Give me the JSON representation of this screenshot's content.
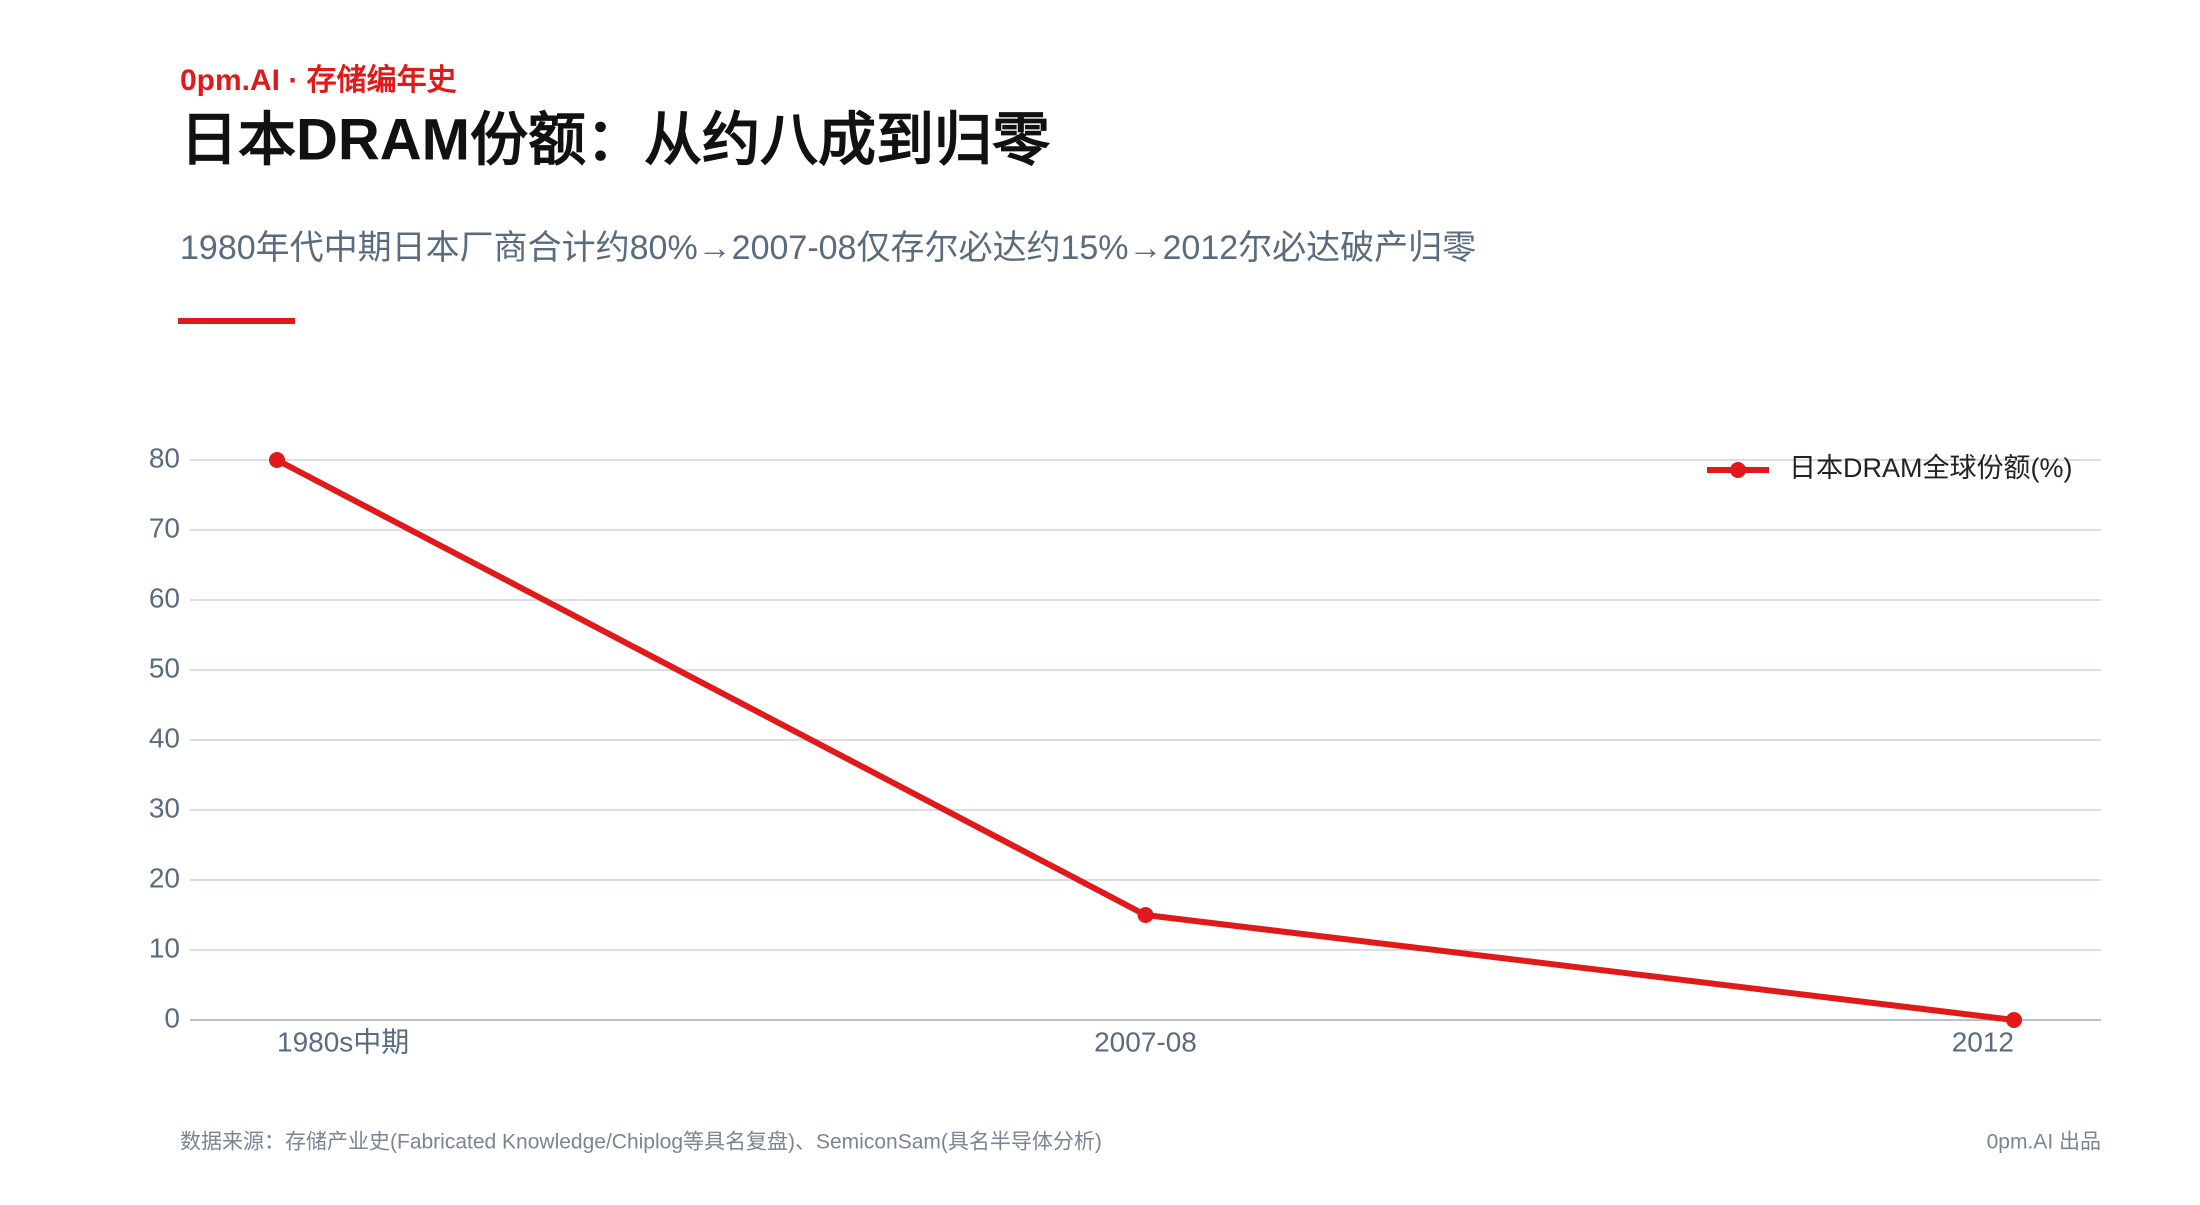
{
  "chart_data": {
    "type": "line",
    "brand": "0pm.AI · 存储编年史",
    "title": "日本DRAM份额：从约八成到归零",
    "subtitle": "1980年代中期日本厂商合计约80%→2007-08仅存尔必达约15%→2012尔必达破产归零",
    "categories": [
      "1980s中期",
      "2007-08",
      "2012"
    ],
    "series": [
      {
        "name": "日本DRAM全球份额(%)",
        "color": "#e01a1a",
        "values": [
          80,
          15,
          0
        ]
      }
    ],
    "ylim": [
      0,
      80
    ],
    "yticks": [
      0,
      10,
      20,
      30,
      40,
      50,
      60,
      70,
      80
    ],
    "grid": true,
    "legend": "top-right",
    "source": "数据来源：存储产业史(Fabricated Knowledge/Chiplog等具名复盘)、SemiconSam(具名半导体分析)",
    "credit": "0pm.AI 出品"
  }
}
